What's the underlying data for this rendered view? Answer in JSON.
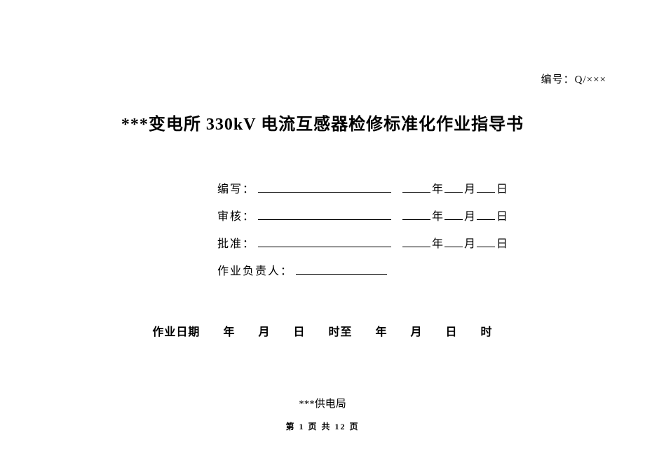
{
  "header": {
    "doc_number_label": "编号：",
    "doc_number_value": "Q/×××"
  },
  "title": "***变电所 330kV 电流互感器检修标准化作业指导书",
  "signatures": {
    "write_label": "编写：",
    "review_label": "审核：",
    "approve_label": "批准：",
    "responsible_label": "作业负责人：",
    "year": "年",
    "month": "月",
    "day": "日"
  },
  "date_line": {
    "label": "作业日期",
    "year": "年",
    "month": "月",
    "day": "日",
    "time_to": "时至",
    "hour": "时"
  },
  "footer": {
    "org": "***供电局",
    "page_prefix": "第",
    "page_current": "1",
    "page_mid": "页 共",
    "page_total": "12",
    "page_suffix": "页"
  }
}
